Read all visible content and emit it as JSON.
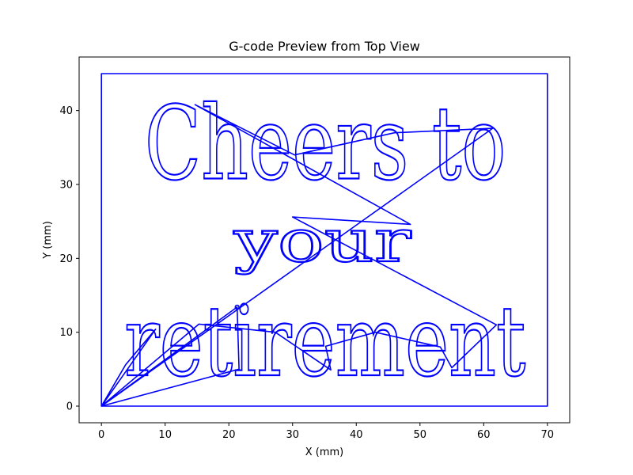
{
  "chart_data": {
    "type": "line",
    "title": "G-code Preview from Top View",
    "xlabel": "X (mm)",
    "ylabel": "Y (mm)",
    "xlim": [
      -3.5,
      73.5
    ],
    "ylim": [
      -2.25,
      47.25
    ],
    "xticks": [
      0,
      10,
      20,
      30,
      40,
      50,
      60,
      70
    ],
    "yticks": [
      0,
      10,
      20,
      30,
      40
    ],
    "grid": false,
    "line_color": "#0000ff",
    "text_lines": [
      {
        "text": "Cheers to",
        "x_start": 6.8,
        "x_end": 63.5,
        "baseline": 30.8,
        "cap_height": 40.8
      },
      {
        "text": "your",
        "x_start": 20.8,
        "x_end": 48.6,
        "baseline": 19.6,
        "cap_height": 25.4
      },
      {
        "text": "retirement",
        "x_start": 3.6,
        "x_end": 66.6,
        "baseline": 4.2,
        "cap_height": 13.8
      }
    ],
    "series": [
      {
        "values_xy": [
          [
            0,
            0
          ],
          [
            70,
            0
          ],
          [
            70,
            45
          ],
          [
            0,
            45
          ],
          [
            0,
            0
          ]
        ]
      },
      {
        "values_xy": [
          [
            0,
            0
          ],
          [
            3.8,
            5.6
          ],
          [
            8.5,
            10.4
          ],
          [
            0,
            0
          ],
          [
            21.3,
            13.4
          ],
          [
            21.6,
            5.0
          ],
          [
            0,
            0
          ],
          [
            15.3,
            11.1
          ],
          [
            27.3,
            10.0
          ],
          [
            36.0,
            4.9
          ],
          [
            35.2,
            8.1
          ],
          [
            43.0,
            10.0
          ],
          [
            53.2,
            8.0
          ],
          [
            55.0,
            5.2
          ],
          [
            62.0,
            11.0
          ],
          [
            30.0,
            25.6
          ],
          [
            48.5,
            24.6
          ],
          [
            14.7,
            40.8
          ],
          [
            30.3,
            34.0
          ],
          [
            46.0,
            37.0
          ],
          [
            61.4,
            37.6
          ],
          [
            0,
            0
          ]
        ]
      }
    ]
  }
}
